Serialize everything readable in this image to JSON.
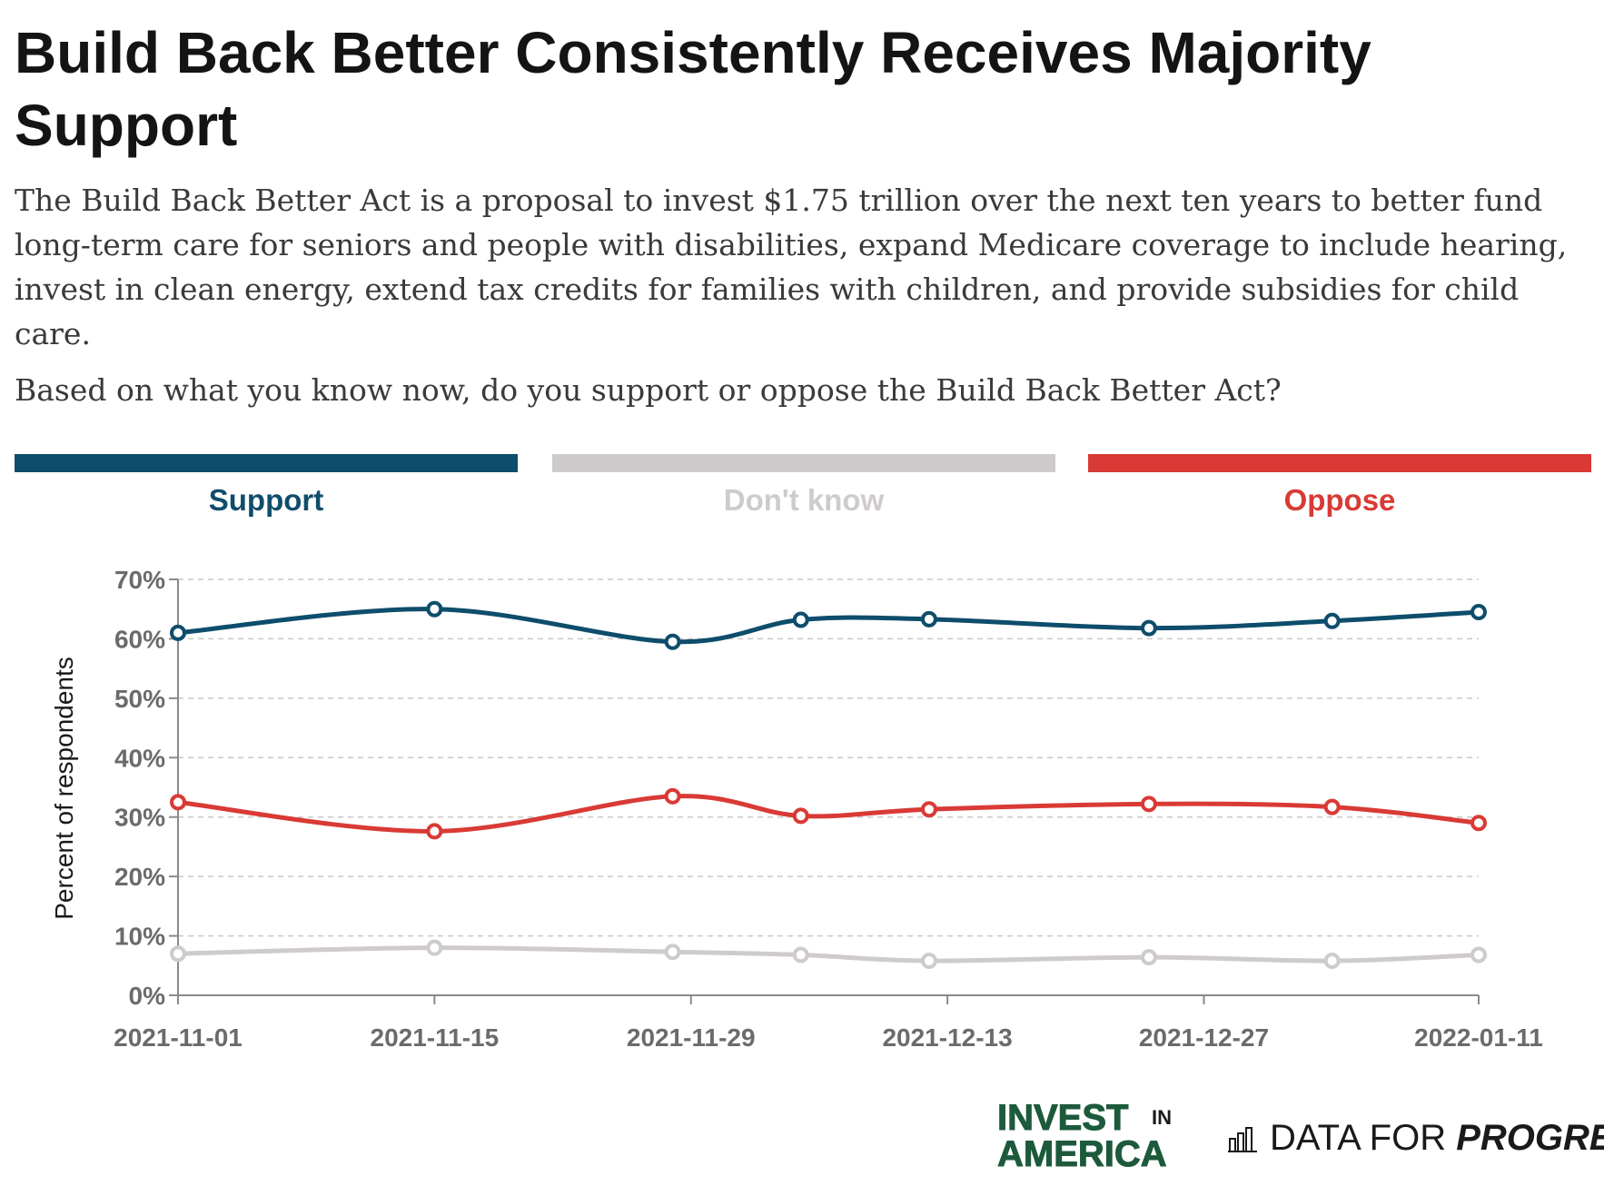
{
  "title": "Build Back Better Consistently Receives Majority Support",
  "description": "The Build Back Better Act is a proposal to invest $1.75 trillion over the next ten years to better fund long-term care for seniors and people with disabilities, expand Medicare coverage to include hearing, invest in clean energy, extend tax credits for families with children, and provide subsidies for child care.",
  "question": "Based on what you know now, do you support or oppose the Build Back Better Act?",
  "legend": [
    {
      "label": "Support",
      "color": "#0e4d6b"
    },
    {
      "label": "Don't know",
      "color": "#cfcbcc"
    },
    {
      "label": "Oppose",
      "color": "#d93a35"
    }
  ],
  "logos": {
    "invest_line1": "INVEST",
    "invest_in": "IN",
    "invest_line2": "AMERICA",
    "dfp_plain": "DATA FOR",
    "dfp_bold": "PROGRESS"
  },
  "chart_data": {
    "type": "line",
    "ylabel": "Percent of respondents",
    "xlabel": "",
    "ylim": [
      0,
      70
    ],
    "yticks": [
      "0%",
      "10%",
      "20%",
      "30%",
      "40%",
      "50%",
      "60%",
      "70%"
    ],
    "xticks": [
      "2021-11-01",
      "2021-11-15",
      "2021-11-29",
      "2021-12-13",
      "2021-12-27",
      "2022-01-11"
    ],
    "xlim": [
      "2021-11-01",
      "2022-01-11"
    ],
    "grid": true,
    "x": [
      "2021-11-01",
      "2021-11-15",
      "2021-11-28",
      "2021-12-05",
      "2021-12-12",
      "2021-12-24",
      "2022-01-03",
      "2022-01-11"
    ],
    "series": [
      {
        "name": "Support",
        "color": "#0e4d6b",
        "values": [
          61,
          65,
          59.5,
          63.2,
          63.3,
          61.8,
          63,
          64.5
        ]
      },
      {
        "name": "Oppose",
        "color": "#d93a35",
        "values": [
          32.5,
          27.6,
          33.5,
          30.2,
          31.3,
          32.2,
          31.7,
          29
        ]
      },
      {
        "name": "Don't know",
        "color": "#cfcbcc",
        "values": [
          7,
          8,
          7.3,
          6.8,
          5.8,
          6.4,
          5.8,
          6.8
        ]
      }
    ]
  }
}
